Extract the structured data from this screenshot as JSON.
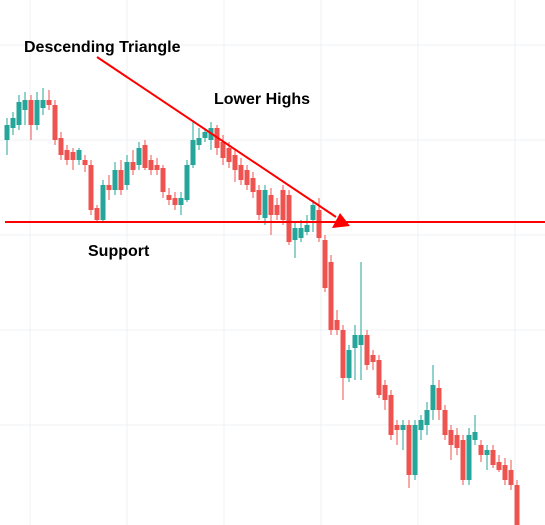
{
  "chart_data": {
    "type": "candlestick",
    "annotations": {
      "pattern": "Descending Triangle",
      "highs": "Lower Highs",
      "support": "Support"
    },
    "up_color": "#26a69a",
    "down_color": "#ef5350",
    "line_color": "#ff0000",
    "ylim": [
      0,
      525
    ],
    "open": [
      385,
      397,
      400,
      415,
      425,
      400,
      417,
      425,
      420,
      387,
      375,
      373,
      365,
      365,
      360,
      317,
      305,
      340,
      335,
      355,
      340,
      363,
      360,
      380,
      365,
      360,
      357,
      330,
      327,
      320,
      325,
      360,
      380,
      387,
      385,
      397,
      383,
      377,
      370,
      360,
      355,
      347,
      335,
      307,
      330,
      320,
      335,
      330,
      285,
      287,
      293,
      305,
      315,
      285,
      263,
      205,
      195,
      147,
      177,
      180,
      190,
      170,
      165,
      140,
      130,
      100,
      95,
      100,
      50,
      95,
      100,
      115,
      137,
      115,
      95,
      90,
      85,
      45,
      85,
      80,
      70,
      75,
      63,
      60,
      55,
      40
    ],
    "high": [
      407,
      413,
      430,
      433,
      430,
      433,
      437,
      435,
      425,
      393,
      380,
      377,
      377,
      370,
      365,
      320,
      345,
      350,
      363,
      365,
      370,
      375,
      383,
      385,
      370,
      367,
      360,
      337,
      333,
      333,
      365,
      405,
      397,
      397,
      403,
      400,
      390,
      383,
      375,
      367,
      360,
      353,
      340,
      340,
      337,
      327,
      340,
      335,
      303,
      305,
      310,
      325,
      327,
      290,
      270,
      215,
      200,
      180,
      200,
      263,
      195,
      175,
      170,
      145,
      135,
      105,
      105,
      105,
      105,
      110,
      123,
      160,
      145,
      120,
      100,
      97,
      90,
      97,
      110,
      85,
      80,
      80,
      70,
      67,
      65,
      45
    ],
    "low": [
      370,
      390,
      395,
      400,
      385,
      395,
      410,
      415,
      380,
      365,
      360,
      355,
      360,
      353,
      310,
      303,
      303,
      325,
      330,
      330,
      335,
      350,
      355,
      355,
      350,
      350,
      327,
      320,
      315,
      310,
      323,
      357,
      375,
      383,
      375,
      370,
      360,
      357,
      343,
      340,
      335,
      327,
      305,
      300,
      290,
      305,
      300,
      280,
      267,
      283,
      290,
      293,
      283,
      233,
      190,
      190,
      125,
      143,
      145,
      145,
      155,
      155,
      127,
      115,
      85,
      80,
      75,
      37,
      45,
      85,
      90,
      105,
      105,
      85,
      65,
      70,
      40,
      40,
      80,
      63,
      55,
      57,
      53,
      40,
      35,
      0
    ],
    "close": [
      400,
      407,
      423,
      425,
      400,
      425,
      425,
      420,
      385,
      370,
      365,
      365,
      375,
      360,
      315,
      305,
      340,
      335,
      355,
      335,
      363,
      355,
      377,
      357,
      355,
      355,
      333,
      325,
      320,
      327,
      360,
      385,
      387,
      393,
      397,
      377,
      367,
      363,
      355,
      345,
      340,
      333,
      310,
      335,
      310,
      310,
      305,
      283,
      297,
      297,
      300,
      320,
      287,
      237,
      195,
      195,
      147,
      175,
      190,
      190,
      160,
      163,
      130,
      125,
      90,
      95,
      100,
      50,
      100,
      105,
      115,
      140,
      115,
      90,
      80,
      77,
      45,
      90,
      93,
      70,
      75,
      60,
      55,
      45,
      40,
      0
    ]
  }
}
